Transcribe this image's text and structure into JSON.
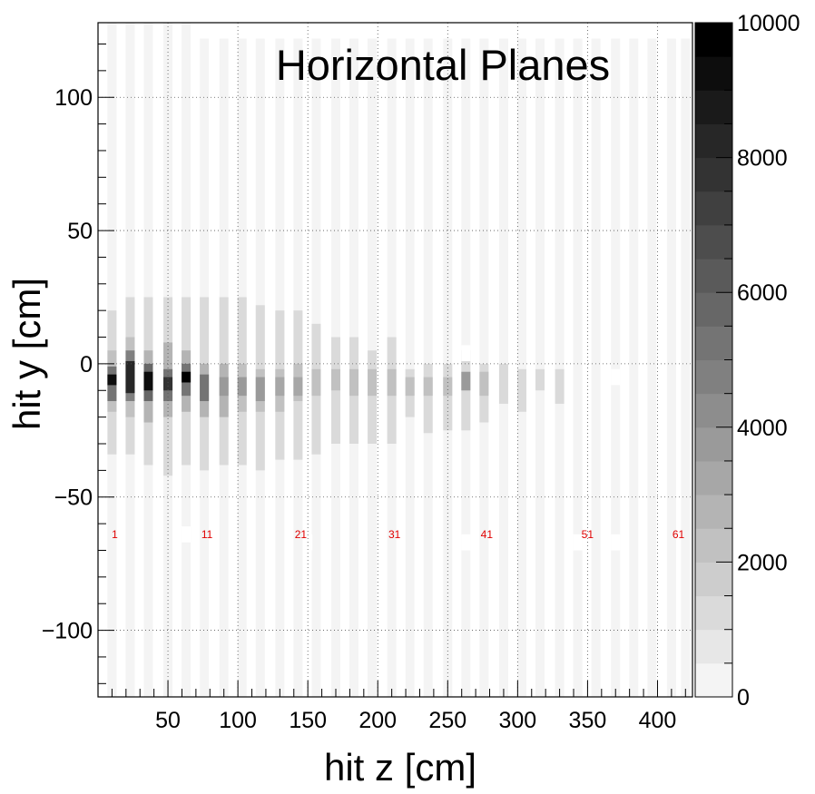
{
  "chart_data": {
    "type": "heatmap",
    "title": "Horizontal Planes",
    "xlabel": "hit z [cm]",
    "ylabel": "hit y [cm]",
    "xlim": [
      0,
      425
    ],
    "ylim": [
      -125,
      128
    ],
    "x_ticks": [
      "50",
      "100",
      "150",
      "200",
      "250",
      "300",
      "350",
      "400"
    ],
    "y_ticks": [
      "100",
      "50",
      "0",
      "−50",
      "−100"
    ],
    "colorbar": {
      "range": [
        0,
        10000
      ],
      "ticks": [
        "0",
        "2000",
        "4000",
        "6000",
        "8000",
        "10000"
      ],
      "levels": 20,
      "palette": "grayscale (light = low, dark = high)"
    },
    "grid": true,
    "plane_labels": [
      {
        "text": "1",
        "z": 10
      },
      {
        "text": "11",
        "z": 76
      },
      {
        "text": "21",
        "z": 143
      },
      {
        "text": "31",
        "z": 210
      },
      {
        "text": "41",
        "z": 276
      },
      {
        "text": "51",
        "z": 348
      },
      {
        "text": "61",
        "z": 413
      }
    ],
    "plane_label_y": -64,
    "background_band_y": [
      -125,
      128
    ],
    "columns": [
      {
        "z": 10,
        "y_top": 128,
        "cells": [
          [
            -34,
            20,
            1000
          ],
          [
            -18,
            5,
            2000
          ],
          [
            -14,
            -1,
            5000
          ],
          [
            -8,
            -4,
            9000
          ]
        ]
      },
      {
        "z": 23,
        "y_top": 128,
        "cells": [
          [
            -34,
            25,
            1000
          ],
          [
            -20,
            10,
            2000
          ],
          [
            -14,
            5,
            4500
          ],
          [
            -11,
            1,
            8000
          ]
        ]
      },
      {
        "z": 36,
        "y_top": 128,
        "cells": [
          [
            -38,
            25,
            1000
          ],
          [
            -22,
            5,
            2500
          ],
          [
            -14,
            0,
            5500
          ],
          [
            -10,
            -3,
            9000
          ]
        ]
      },
      {
        "z": 50,
        "y_top": 128,
        "cells": [
          [
            -42,
            25,
            1000
          ],
          [
            -20,
            8,
            2500
          ],
          [
            -14,
            -2,
            5000
          ],
          [
            -10,
            -5,
            7500
          ]
        ]
      },
      {
        "z": 63,
        "y_top": 128,
        "cells": [
          [
            -38,
            25,
            1000
          ],
          [
            -18,
            5,
            2500
          ],
          [
            -12,
            0,
            5000
          ],
          [
            -7,
            -3,
            10000
          ]
        ]
      },
      {
        "z": 76,
        "y_top": 122,
        "cells": [
          [
            -40,
            25,
            1000
          ],
          [
            -20,
            0,
            2500
          ],
          [
            -14,
            -4,
            5000
          ]
        ]
      },
      {
        "z": 90,
        "y_top": 122,
        "cells": [
          [
            -38,
            25,
            1000
          ],
          [
            -20,
            0,
            2500
          ],
          [
            -12,
            -5,
            3500
          ]
        ]
      },
      {
        "z": 103,
        "y_top": 122,
        "cells": [
          [
            -38,
            25,
            1000
          ],
          [
            -18,
            0,
            2000
          ],
          [
            -12,
            -5,
            3500
          ]
        ]
      },
      {
        "z": 116,
        "y_top": 122,
        "cells": [
          [
            -40,
            22,
            1000
          ],
          [
            -18,
            -2,
            2000
          ],
          [
            -14,
            -5,
            3500
          ]
        ]
      },
      {
        "z": 130,
        "y_top": 122,
        "cells": [
          [
            -36,
            20,
            1000
          ],
          [
            -18,
            -2,
            2000
          ],
          [
            -12,
            -5,
            3000
          ]
        ]
      },
      {
        "z": 143,
        "y_top": 122,
        "cells": [
          [
            -36,
            20,
            1000
          ],
          [
            -14,
            0,
            2000
          ],
          [
            -12,
            -5,
            3000
          ]
        ]
      },
      {
        "z": 156,
        "y_top": 122,
        "cells": [
          [
            -34,
            15,
            1000
          ],
          [
            -12,
            -2,
            2000
          ]
        ]
      },
      {
        "z": 170,
        "y_top": 122,
        "cells": [
          [
            -30,
            10,
            1000
          ],
          [
            -10,
            -2,
            2000
          ]
        ]
      },
      {
        "z": 183,
        "y_top": 122,
        "cells": [
          [
            -30,
            10,
            1000
          ],
          [
            -12,
            -2,
            2000
          ]
        ]
      },
      {
        "z": 196,
        "y_top": 122,
        "cells": [
          [
            -30,
            5,
            1000
          ],
          [
            -12,
            -2,
            2000
          ]
        ]
      },
      {
        "z": 210,
        "y_top": 122,
        "cells": [
          [
            -30,
            10,
            1000
          ],
          [
            -12,
            -2,
            2000
          ]
        ]
      },
      {
        "z": 223,
        "y_top": 122,
        "cells": [
          [
            -20,
            -2,
            1000
          ],
          [
            -12,
            -5,
            2000
          ]
        ]
      },
      {
        "z": 236,
        "y_top": 122,
        "cells": [
          [
            -26,
            0,
            1000
          ],
          [
            -12,
            -5,
            2000
          ]
        ]
      },
      {
        "z": 250,
        "y_top": 122,
        "cells": [
          [
            -25,
            0,
            1000
          ],
          [
            -12,
            -5,
            2000
          ]
        ]
      },
      {
        "z": 263,
        "y_top": 122,
        "cells": [
          [
            -25,
            5,
            1000
          ],
          [
            -10,
            -3,
            3500
          ]
        ]
      },
      {
        "z": 276,
        "y_top": 122,
        "cells": [
          [
            -22,
            0,
            1000
          ],
          [
            -12,
            -3,
            2000
          ]
        ]
      },
      {
        "z": 290,
        "y_top": 122,
        "cells": [
          [
            -15,
            0,
            1000
          ]
        ]
      },
      {
        "z": 303,
        "y_top": 122,
        "cells": [
          [
            -18,
            -2,
            1000
          ]
        ]
      },
      {
        "z": 316,
        "y_top": 122,
        "cells": [
          [
            -10,
            -2,
            1000
          ]
        ]
      },
      {
        "z": 330,
        "y_top": 122,
        "cells": [
          [
            -15,
            -2,
            1000
          ]
        ]
      },
      {
        "z": 343,
        "y_top": 122,
        "cells": []
      },
      {
        "z": 356,
        "y_top": 122,
        "cells": []
      },
      {
        "z": 370,
        "y_top": 122,
        "cells": []
      },
      {
        "z": 383,
        "y_top": 122,
        "cells": []
      },
      {
        "z": 396,
        "y_top": 122,
        "cells": []
      },
      {
        "z": 410,
        "y_top": 122,
        "cells": []
      },
      {
        "z": 420,
        "y_top": 122,
        "cells": []
      }
    ],
    "gaps": [
      {
        "z": 63,
        "y": -64
      },
      {
        "z": 150,
        "y": -67
      },
      {
        "z": 263,
        "y": -67
      },
      {
        "z": 343,
        "y": -67
      },
      {
        "z": 370,
        "y": -67
      },
      {
        "z": 263,
        "y": 4
      },
      {
        "z": 370,
        "y": -5
      }
    ]
  }
}
